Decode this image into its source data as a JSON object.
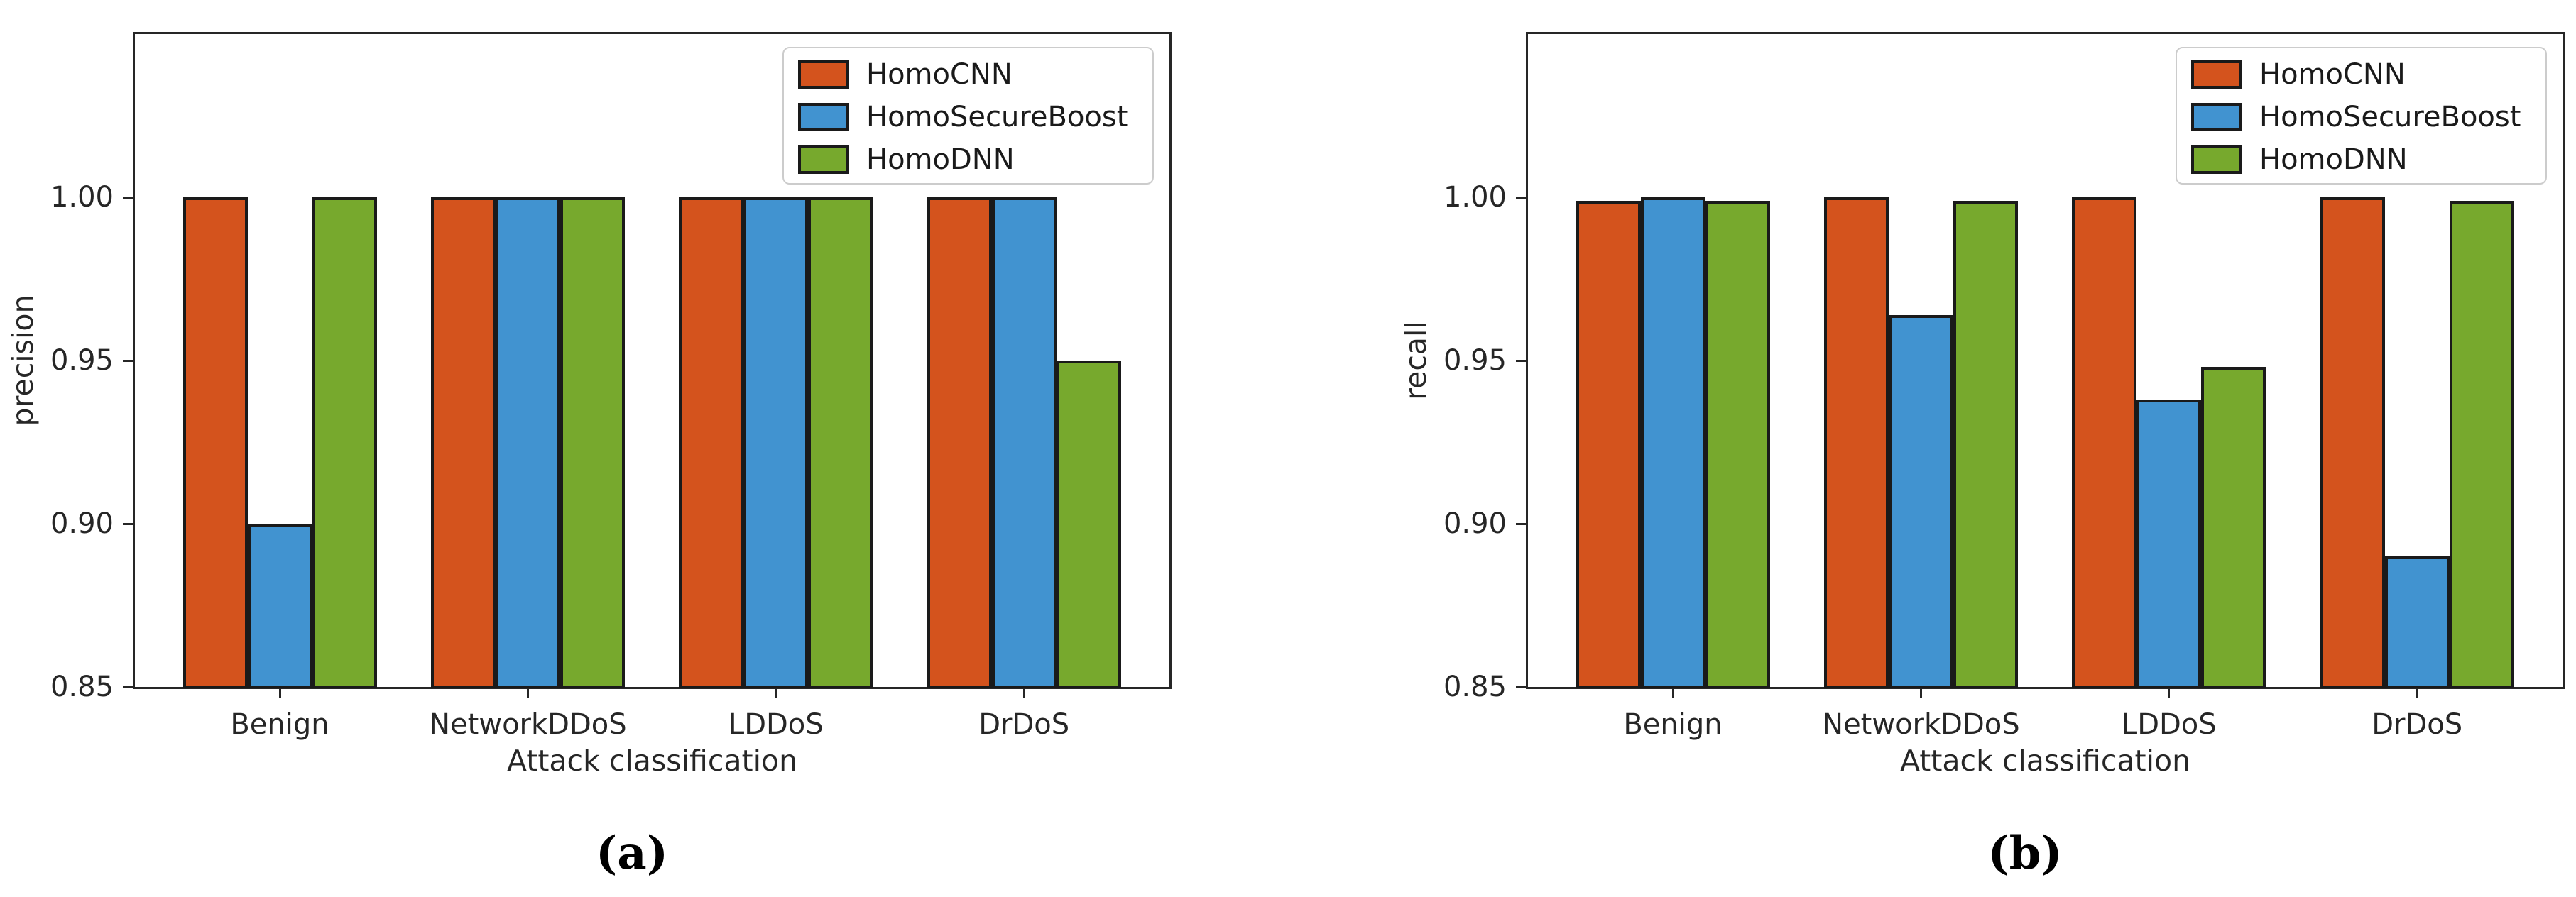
{
  "figure_caption_a": "(a)",
  "figure_caption_b": "(b)",
  "colors": {
    "bar_orange": "#d4531d",
    "bar_blue": "#4193d0",
    "bar_green": "#77a92d",
    "bar_edge": "#1a1a1a",
    "spine": "#262626",
    "legend_border": "#cccccc",
    "background": "#ffffff"
  },
  "chart_data": [
    {
      "type": "bar",
      "panel": "a",
      "caption": "(a)",
      "title": "",
      "xlabel": "Attack classification",
      "ylabel": "precision",
      "categories": [
        "Benign",
        "NetworkDDoS",
        "LDDoS",
        "DrDoS"
      ],
      "series": [
        {
          "name": "HomoCNN",
          "color": "#d4531d",
          "values": [
            1.0,
            1.0,
            1.0,
            1.0
          ]
        },
        {
          "name": "HomoSecureBoost",
          "color": "#4193d0",
          "values": [
            0.9,
            1.0,
            1.0,
            1.0
          ]
        },
        {
          "name": "HomoDNN",
          "color": "#77a92d",
          "values": [
            1.0,
            1.0,
            1.0,
            0.95
          ]
        }
      ],
      "ylim": [
        0.85,
        1.05
      ],
      "yticks": [
        0.85,
        0.9,
        0.95,
        1.0
      ],
      "grid": false,
      "legend_position": "upper right"
    },
    {
      "type": "bar",
      "panel": "b",
      "caption": "(b)",
      "title": "",
      "xlabel": "Attack classification",
      "ylabel": "recall",
      "categories": [
        "Benign",
        "NetworkDDoS",
        "LDDoS",
        "DrDoS"
      ],
      "series": [
        {
          "name": "HomoCNN",
          "color": "#d4531d",
          "values": [
            0.999,
            1.0,
            1.0,
            1.0
          ]
        },
        {
          "name": "HomoSecureBoost",
          "color": "#4193d0",
          "values": [
            1.0,
            0.964,
            0.938,
            0.89
          ]
        },
        {
          "name": "HomoDNN",
          "color": "#77a92d",
          "values": [
            0.999,
            0.999,
            0.948,
            0.999
          ]
        }
      ],
      "ylim": [
        0.85,
        1.05
      ],
      "yticks": [
        0.85,
        0.9,
        0.95,
        1.0
      ],
      "grid": false,
      "legend_position": "upper right"
    }
  ]
}
